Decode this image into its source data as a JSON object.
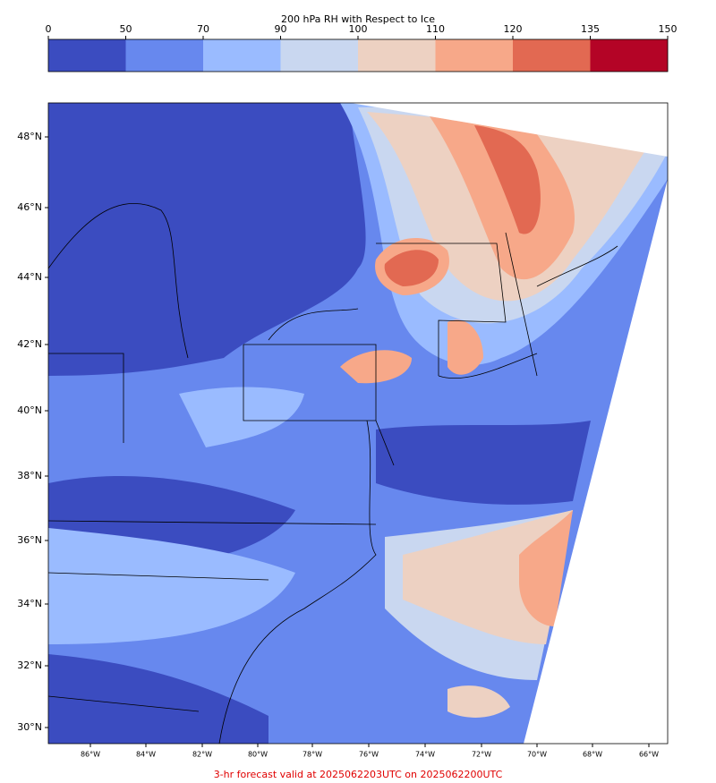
{
  "colorbar": {
    "title": "200 hPa RH with Respect to Ice",
    "ticks": [
      0,
      50,
      70,
      90,
      100,
      110,
      120,
      135,
      150
    ],
    "colors": [
      "#3b4cc0",
      "#6788ee",
      "#9abbff",
      "#c9d7f0",
      "#edd1c2",
      "#f7a889",
      "#e26952",
      "#b40426"
    ]
  },
  "map": {
    "lat_labels": [
      "48°N",
      "46°N",
      "44°N",
      "42°N",
      "40°N",
      "38°N",
      "36°N",
      "34°N",
      "32°N",
      "30°N"
    ],
    "lon_labels": [
      "86°W",
      "84°W",
      "82°W",
      "80°W",
      "78°W",
      "76°W",
      "74°W",
      "72°W",
      "70°W",
      "68°W",
      "66°W"
    ]
  },
  "footer": "3-hr forecast valid at 2025062203UTC on 2025062200UTC"
}
